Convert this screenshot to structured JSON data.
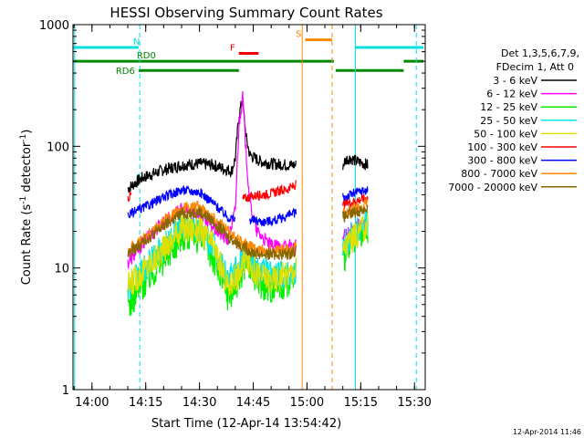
{
  "chart_data": {
    "type": "line",
    "title": "HESSI Observing Summary Count Rates",
    "xlabel": "Start Time (12-Apr-14 13:54:42)",
    "ylabel_main": "Count Rate (s",
    "ylabel_sup": "-1",
    "ylabel_tail": " detector",
    "ylabel_sup2": "-1",
    "ylabel_close": ")",
    "y_scale": "log",
    "ylim": [
      1,
      1000
    ],
    "xlim": [
      "13:54:42",
      "15:33:00"
    ],
    "y_ticks": [
      {
        "value": 1,
        "label": "1"
      },
      {
        "value": 10,
        "label": "10"
      },
      {
        "value": 100,
        "label": "100"
      },
      {
        "value": 1000,
        "label": "1000"
      }
    ],
    "x_ticks": [
      {
        "value": "14:00",
        "label": "14:00"
      },
      {
        "value": "14:15",
        "label": "14:15"
      },
      {
        "value": "14:30",
        "label": "14:30"
      },
      {
        "value": "14:45",
        "label": "14:45"
      },
      {
        "value": "15:00",
        "label": "15:00"
      },
      {
        "value": "15:15",
        "label": "15:15"
      },
      {
        "value": "15:30",
        "label": "15:30"
      }
    ],
    "legend": {
      "placement": "right",
      "header1": "Det 1,3,5,6,7,9,",
      "header2": "FDecim 1, Att 0",
      "entries": [
        {
          "label": "3 - 6 keV",
          "color": "#000000"
        },
        {
          "label": "6 - 12 keV",
          "color": "#ff00ff"
        },
        {
          "label": "12 - 25 keV",
          "color": "#00ee00"
        },
        {
          "label": "25 - 50 keV",
          "color": "#00e8e8"
        },
        {
          "label": "50 - 100 keV",
          "color": "#e0e000"
        },
        {
          "label": "100 - 300 keV",
          "color": "#ff0000"
        },
        {
          "label": "300 - 800 keV",
          "color": "#0000ff"
        },
        {
          "label": "800 - 7000 keV",
          "color": "#ff8800"
        },
        {
          "label": "7000 - 20000 keV",
          "color": "#886600"
        }
      ]
    },
    "flag_bars": [
      {
        "label": "N",
        "color": "#00e0e0",
        "segments": [
          [
            "13:54:42",
            "14:13:00"
          ],
          [
            "15:13:30",
            "15:32:30"
          ]
        ],
        "level": 650
      },
      {
        "label": "RD0",
        "color": "#008800",
        "segments": [
          [
            "13:54:42",
            "15:07:30"
          ],
          [
            "15:27:00",
            "15:32:30"
          ]
        ],
        "level": 500
      },
      {
        "label": "RD6",
        "color": "#008800",
        "segments": [
          [
            "14:13:00",
            "14:41:00"
          ],
          [
            "15:08:00",
            "15:27:00"
          ]
        ],
        "level": 420
      },
      {
        "label": "F",
        "color": "#ee0000",
        "segments": [
          [
            "14:41:00",
            "14:46:30"
          ]
        ],
        "level": 580
      },
      {
        "label": "S",
        "color": "#ff8800",
        "segments": [
          [
            "14:59:30",
            "15:07:00"
          ]
        ],
        "level": 750
      }
    ],
    "vertical_markers": [
      {
        "x": "13:55:10",
        "color": "#00e0e0",
        "style": "solid"
      },
      {
        "x": "14:13:20",
        "color": "#00e0e0",
        "style": "dashed"
      },
      {
        "x": "14:58:40",
        "color": "#ff8800",
        "style": "solid"
      },
      {
        "x": "15:07:00",
        "color": "#ff8800",
        "style": "dashed"
      },
      {
        "x": "15:13:30",
        "color": "#00e0e0",
        "style": "solid"
      },
      {
        "x": "15:30:30",
        "color": "#00e0e0",
        "style": "dashed"
      }
    ],
    "series": [
      {
        "name": "3 - 6 keV",
        "color": "#000000",
        "noise": 0.05,
        "segments": [
          {
            "x": [
              "14:10",
              "14:14",
              "14:20",
              "14:25",
              "14:30",
              "14:34",
              "14:37",
              "14:39",
              "14:40",
              "14:41",
              "14:42",
              "14:43",
              "14:44",
              "14:47",
              "14:50",
              "14:55",
              "14:57"
            ],
            "y": [
              45,
              55,
              64,
              70,
              72,
              70,
              65,
              63,
              80,
              180,
              240,
              120,
              85,
              75,
              72,
              70,
              70
            ]
          },
          {
            "x": [
              "15:10",
              "15:11",
              "15:12",
              "15:14",
              "15:16",
              "15:17"
            ],
            "y": [
              70,
              78,
              80,
              75,
              72,
              70
            ]
          }
        ]
      },
      {
        "name": "6 - 12 keV",
        "color": "#ff00ff",
        "noise": 0.06,
        "segments": [
          {
            "x": [
              "14:10",
              "14:15",
              "14:20",
              "14:25",
              "14:30",
              "14:35",
              "14:38",
              "14:40",
              "14:41",
              "14:42",
              "14:43",
              "14:44",
              "14:46",
              "14:50",
              "14:55",
              "14:57"
            ],
            "y": [
              11,
              17,
              24,
              30,
              28,
              20,
              17,
              30,
              150,
              260,
              90,
              35,
              20,
              15,
              15,
              15
            ]
          },
          {
            "x": [
              "15:10",
              "15:12",
              "15:14",
              "15:17"
            ],
            "y": [
              18,
              20,
              22,
              23
            ]
          }
        ]
      },
      {
        "name": "12 - 25 keV",
        "color": "#00ee00",
        "noise": 0.14,
        "segments": [
          {
            "x": [
              "14:10",
              "14:15",
              "14:20",
              "14:25",
              "14:30",
              "14:34",
              "14:38",
              "14:41",
              "14:43",
              "14:46",
              "14:50",
              "14:55",
              "14:57"
            ],
            "y": [
              5,
              8,
              12,
              19,
              18,
              12,
              6,
              8,
              12,
              8,
              7,
              8,
              9
            ]
          },
          {
            "x": [
              "15:10",
              "15:12",
              "15:14",
              "15:17"
            ],
            "y": [
              12,
              15,
              18,
              21
            ]
          }
        ]
      },
      {
        "name": "25 - 50 keV",
        "color": "#00e8e8",
        "noise": 0.12,
        "segments": [
          {
            "x": [
              "14:10",
              "14:15",
              "14:20",
              "14:25",
              "14:30",
              "14:34",
              "14:38",
              "14:41",
              "14:43",
              "14:46",
              "14:50",
              "14:55",
              "14:57"
            ],
            "y": [
              7,
              10,
              15,
              22,
              21,
              15,
              8,
              10,
              14,
              10,
              9,
              9,
              10
            ]
          },
          {
            "x": [
              "15:10",
              "15:12",
              "15:14",
              "15:17"
            ],
            "y": [
              15,
              18,
              20,
              24
            ]
          }
        ]
      },
      {
        "name": "50 - 100 keV",
        "color": "#e0e000",
        "noise": 0.12,
        "segments": [
          {
            "x": [
              "14:10",
              "14:15",
              "14:20",
              "14:25",
              "14:30",
              "14:34",
              "14:38",
              "14:41",
              "14:43",
              "14:46",
              "14:50",
              "14:55",
              "14:57"
            ],
            "y": [
              7,
              10,
              14,
              21,
              21,
              15,
              7,
              9,
              12,
              9,
              8,
              9,
              10
            ]
          },
          {
            "x": [
              "15:10",
              "15:12",
              "15:14",
              "15:17"
            ],
            "y": [
              14,
              17,
              19,
              22
            ]
          }
        ]
      },
      {
        "name": "100 - 300 keV",
        "color": "#ff0000",
        "noise": 0.04,
        "segments": [
          {
            "x": [
              "14:10",
              "14:11"
            ],
            "y": [
              38,
              40
            ]
          },
          {
            "x": [
              "14:42",
              "14:45",
              "14:50",
              "14:55",
              "14:57"
            ],
            "y": [
              37,
              39,
              41,
              45,
              48
            ]
          },
          {
            "x": [
              "15:10",
              "15:14",
              "15:17"
            ],
            "y": [
              33,
              36,
              38
            ]
          }
        ]
      },
      {
        "name": "300 - 800 keV",
        "color": "#0000ff",
        "noise": 0.04,
        "segments": [
          {
            "x": [
              "14:10",
              "14:15",
              "14:20",
              "14:25",
              "14:30",
              "14:34",
              "14:38",
              "14:40"
            ],
            "y": [
              27,
              32,
              38,
              44,
              42,
              34,
              26,
              25
            ]
          },
          {
            "x": [
              "14:44",
              "14:48",
              "14:52",
              "14:56",
              "14:57"
            ],
            "y": [
              25,
              24,
              25,
              28,
              29
            ]
          },
          {
            "x": [
              "15:10",
              "15:14",
              "15:17"
            ],
            "y": [
              38,
              42,
              44
            ]
          }
        ]
      },
      {
        "name": "800 - 7000 keV",
        "color": "#ff8800",
        "noise": 0.05,
        "segments": [
          {
            "x": [
              "14:10",
              "14:15",
              "14:20",
              "14:25",
              "14:30",
              "14:34",
              "14:38",
              "14:42",
              "14:46",
              "14:50",
              "14:55",
              "14:57"
            ],
            "y": [
              14,
              18,
              24,
              31,
              32,
              26,
              20,
              16,
              14,
              14,
              14,
              15
            ]
          },
          {
            "x": [
              "15:10",
              "15:14",
              "15:17"
            ],
            "y": [
              28,
              31,
              34
            ]
          }
        ]
      },
      {
        "name": "7000 - 20000 keV",
        "color": "#886600",
        "noise": 0.05,
        "segments": [
          {
            "x": [
              "14:10",
              "14:15",
              "14:20",
              "14:25",
              "14:30",
              "14:34",
              "14:38",
              "14:42",
              "14:46",
              "14:50",
              "14:55",
              "14:57"
            ],
            "y": [
              13,
              17,
              22,
              28,
              29,
              24,
              18,
              15,
              13,
              13,
              13,
              14
            ]
          },
          {
            "x": [
              "15:10",
              "15:14",
              "15:17"
            ],
            "y": [
              26,
              29,
              31
            ]
          }
        ]
      }
    ]
  },
  "footer_timestamp": "12-Apr-2014 11:46"
}
